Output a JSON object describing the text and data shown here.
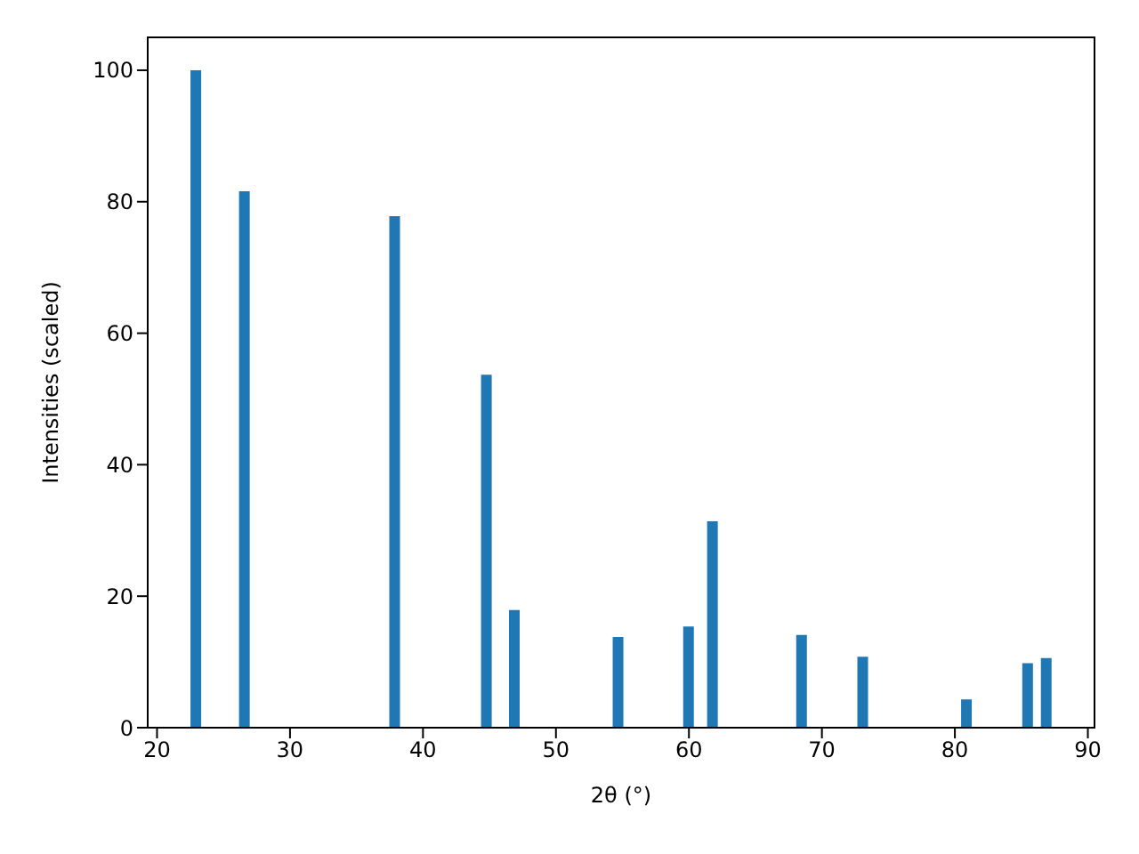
{
  "chart_data": {
    "type": "bar",
    "xlabel": "2θ (°)",
    "ylabel": "Intensities (scaled)",
    "x": [
      22.95,
      26.6,
      37.9,
      44.8,
      46.9,
      54.7,
      60.0,
      61.8,
      68.5,
      73.1,
      80.9,
      85.5,
      86.9
    ],
    "values": [
      100,
      81.6,
      77.8,
      53.7,
      17.9,
      13.8,
      15.4,
      31.4,
      14.1,
      10.8,
      4.3,
      9.8,
      10.6
    ],
    "color": "#1f77b4",
    "xlim": [
      19.3,
      90.5
    ],
    "xticks": [
      20,
      30,
      40,
      50,
      60,
      70,
      80,
      90
    ],
    "ylim": [
      0,
      105
    ],
    "yticks": [
      0,
      20,
      40,
      60,
      80,
      100
    ],
    "grid": false,
    "legend": false
  }
}
